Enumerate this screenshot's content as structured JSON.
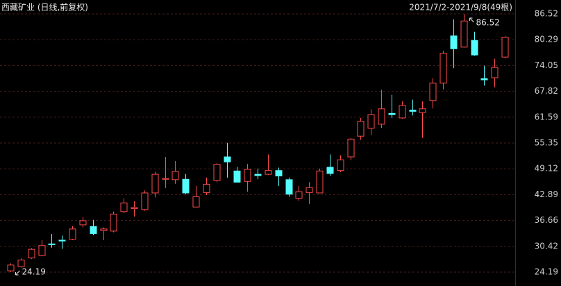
{
  "chart_data": {
    "type": "candlestick",
    "title": "西藏矿业 (日线,前复权)",
    "subtitle": "2021/7/2-2021/9/8(49根)",
    "up_color": "#ff4b4b",
    "down_color": "#54fcfc",
    "grid": true,
    "ylim": [
      20.84,
      89.87
    ],
    "yticks": [
      86.52,
      80.29,
      74.05,
      67.82,
      61.59,
      55.35,
      49.12,
      42.89,
      36.66,
      30.42,
      24.19
    ],
    "open": [
      24.5,
      25.5,
      27.6,
      28.2,
      31.0,
      31.9,
      32.1,
      35.6,
      35.2,
      34.2,
      34.1,
      38.8,
      39.5,
      39.3,
      43.3,
      46.6,
      46.5,
      46.6,
      39.9,
      43.4,
      46.3,
      52.0,
      48.6,
      46.1,
      47.8,
      47.8,
      48.7,
      46.5,
      42.0,
      43.4,
      43.3,
      49.5,
      48.7,
      52.0,
      57.0,
      58.9,
      59.9,
      62.5,
      61.4,
      63.3,
      62.7,
      65.6,
      69.8,
      81.2,
      78.5,
      80.1,
      70.9,
      71.1,
      76.1
    ],
    "high": [
      26.3,
      27.5,
      30.0,
      31.9,
      33.4,
      33.0,
      35.3,
      37.5,
      36.8,
      35.0,
      38.8,
      42.0,
      41.3,
      43.9,
      48.4,
      52.0,
      51.0,
      47.9,
      45.0,
      47.0,
      50.5,
      55.4,
      49.6,
      50.3,
      49.2,
      52.6,
      49.4,
      47.0,
      45.0,
      45.9,
      49.2,
      52.6,
      52.4,
      56.6,
      61.4,
      63.5,
      68.2,
      67.0,
      65.4,
      65.8,
      65.4,
      71.0,
      77.6,
      85.2,
      86.52,
      82.2,
      74.0,
      75.7,
      81.2
    ],
    "low": [
      24.19,
      25.3,
      27.4,
      28.0,
      30.1,
      29.8,
      31.9,
      35.0,
      33.1,
      31.9,
      33.8,
      38.5,
      37.6,
      39.0,
      42.2,
      44.5,
      45.5,
      43.0,
      39.9,
      42.8,
      45.9,
      47.0,
      45.8,
      43.6,
      46.6,
      47.6,
      45.0,
      42.4,
      41.4,
      40.6,
      43.2,
      47.4,
      48.3,
      51.2,
      56.1,
      57.3,
      59.0,
      61.4,
      61.2,
      62.0,
      56.6,
      63.7,
      68.3,
      73.4,
      78.4,
      76.4,
      69.2,
      68.8,
      75.8
    ],
    "close": [
      25.9,
      27.1,
      29.7,
      30.6,
      30.9,
      31.7,
      34.6,
      36.6,
      33.5,
      34.6,
      38.2,
      40.9,
      39.8,
      43.3,
      47.8,
      46.8,
      48.5,
      43.3,
      42.4,
      45.4,
      50.2,
      50.8,
      45.9,
      49.0,
      47.5,
      48.7,
      47.4,
      43.0,
      43.6,
      44.6,
      48.6,
      48.0,
      51.3,
      56.3,
      60.6,
      62.2,
      63.6,
      62.2,
      64.4,
      63.0,
      63.6,
      69.8,
      77.0,
      78.1,
      84.8,
      76.6,
      70.6,
      73.6,
      80.9
    ]
  }
}
